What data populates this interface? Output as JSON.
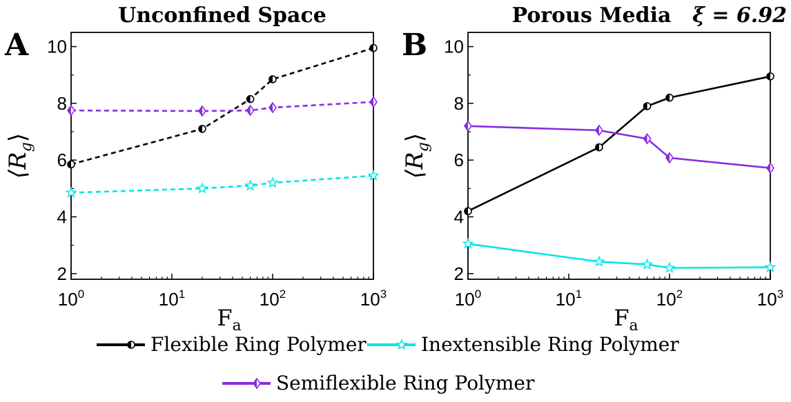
{
  "chart_data": [
    {
      "panel_label": "A",
      "type": "line",
      "title": "Unconfined Space",
      "annotation": "",
      "xlabel": "F",
      "xlabel_sub": "a",
      "ylabel": "⟨R",
      "ylabel_sub": "g",
      "ylabel_close": "⟩",
      "xscale": "log",
      "xlim": [
        1,
        1000
      ],
      "ylim": [
        1.8,
        10.5
      ],
      "xticks": [
        1,
        10,
        100,
        1000
      ],
      "xtick_labels": [
        {
          "base": "10",
          "exp": "0"
        },
        {
          "base": "10",
          "exp": "1"
        },
        {
          "base": "10",
          "exp": "2"
        },
        {
          "base": "10",
          "exp": "3"
        }
      ],
      "yticks": [
        2,
        4,
        6,
        8,
        10
      ],
      "ytick_labels": [
        "2",
        "4",
        "6",
        "8",
        "10"
      ],
      "grid": false,
      "line_style": "dashed",
      "x": [
        1,
        20,
        60,
        100,
        1000
      ],
      "series": [
        {
          "key": "flexible",
          "values": [
            5.85,
            7.1,
            8.15,
            8.85,
            9.95
          ]
        },
        {
          "key": "semiflexible",
          "values": [
            7.75,
            7.73,
            7.75,
            7.85,
            8.05
          ]
        },
        {
          "key": "inextensible",
          "values": [
            4.85,
            5.0,
            5.1,
            5.2,
            5.45
          ]
        }
      ]
    },
    {
      "panel_label": "B",
      "type": "line",
      "title": "Porous Media",
      "annotation": "ξ = 6.92",
      "xlabel": "F",
      "xlabel_sub": "a",
      "ylabel": "⟨R",
      "ylabel_sub": "g",
      "ylabel_close": "⟩",
      "xscale": "log",
      "xlim": [
        1,
        1000
      ],
      "ylim": [
        1.8,
        10.5
      ],
      "xticks": [
        1,
        10,
        100,
        1000
      ],
      "xtick_labels": [
        {
          "base": "10",
          "exp": "0"
        },
        {
          "base": "10",
          "exp": "1"
        },
        {
          "base": "10",
          "exp": "2"
        },
        {
          "base": "10",
          "exp": "3"
        }
      ],
      "yticks": [
        2,
        4,
        6,
        8,
        10
      ],
      "ytick_labels": [
        "2",
        "4",
        "6",
        "8",
        "10"
      ],
      "grid": false,
      "line_style": "solid",
      "x": [
        1,
        20,
        60,
        100,
        1000
      ],
      "series": [
        {
          "key": "flexible",
          "values": [
            4.2,
            6.45,
            7.9,
            8.2,
            8.95
          ]
        },
        {
          "key": "semiflexible",
          "values": [
            7.2,
            7.05,
            6.75,
            6.08,
            5.72
          ]
        },
        {
          "key": "inextensible",
          "values": [
            3.05,
            2.42,
            2.32,
            2.2,
            2.22
          ]
        }
      ]
    }
  ],
  "legend": {
    "placement": "bottom",
    "items": [
      {
        "key": "flexible",
        "name": "Flexible Ring Polymer",
        "color": "#000000",
        "marker": "half-filled-circle"
      },
      {
        "key": "inextensible",
        "name": "Inextensible Ring Polymer",
        "color": "#00e5e5",
        "marker": "star"
      },
      {
        "key": "semiflexible",
        "name": "Semiflexible Ring Polymer",
        "color": "#8a2be2",
        "marker": "half-filled-diamond"
      }
    ]
  }
}
